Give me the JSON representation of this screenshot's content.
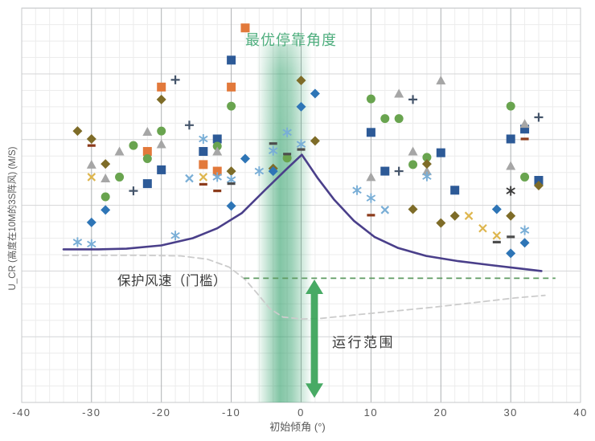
{
  "chart_data": {
    "type": "scatter",
    "title": "最优停靠角度",
    "xlabel": "初始倾角 (°)",
    "ylabel": "U_CR (高度在10M的3S阵风) (M/S)",
    "xlim": [
      -40,
      40
    ],
    "x_ticks": [
      -40,
      -30,
      -20,
      -10,
      0,
      10,
      20,
      30,
      40
    ],
    "ylim": [
      0,
      6
    ],
    "y_axis_note": "no numeric y tick labels shown; y values are in horizontal-gridline units counted from the bottom axis",
    "grid": {
      "major": true,
      "minor": true,
      "minor_x_step_deg": 2,
      "minor_y_step_units": 0.25
    },
    "legend": "none",
    "annotations": {
      "optimal_band": {
        "label": "最优停靠角度",
        "x_from": -6.4,
        "x_to": 1.6,
        "color": "#2e9e68",
        "label_color": "#4fae7e"
      },
      "threshold": {
        "label": "保护风速（门槛）",
        "y": 1.89,
        "x_from": -8.2,
        "x_to": 36.4,
        "color": "#5f9b62",
        "style": "dashed"
      },
      "operating_range": {
        "label": "运行范围",
        "arrow_x": 1.9,
        "y_from": 0.07,
        "y_to": 1.87,
        "color": "#38a358"
      }
    },
    "lines": [
      {
        "name": "critical-gust-curve",
        "color": "#4a3f8a",
        "style": "solid",
        "width": 2.6,
        "points": [
          [
            -34,
            2.33
          ],
          [
            -29,
            2.33
          ],
          [
            -25,
            2.34
          ],
          [
            -20,
            2.39
          ],
          [
            -15.5,
            2.5
          ],
          [
            -12,
            2.65
          ],
          [
            -8.5,
            2.88
          ],
          [
            -5.1,
            3.24
          ],
          [
            -2.2,
            3.54
          ],
          [
            0.1,
            3.77
          ],
          [
            2.4,
            3.41
          ],
          [
            4.7,
            3.09
          ],
          [
            7.6,
            2.76
          ],
          [
            10.5,
            2.52
          ],
          [
            13.9,
            2.35
          ],
          [
            17.9,
            2.23
          ],
          [
            22.5,
            2.15
          ],
          [
            27.1,
            2.09
          ],
          [
            31.1,
            2.04
          ],
          [
            34.4,
            2.0
          ]
        ]
      },
      {
        "name": "secondary-dashed-curve",
        "color": "#cccccc",
        "style": "dashed",
        "width": 1.8,
        "points": [
          [
            -34.1,
            2.24
          ],
          [
            -23.5,
            2.24
          ],
          [
            -17.2,
            2.23
          ],
          [
            -13.4,
            2.18
          ],
          [
            -10.3,
            2.06
          ],
          [
            -8,
            1.87
          ],
          [
            -6.3,
            1.66
          ],
          [
            -4.5,
            1.43
          ],
          [
            -2.6,
            1.3
          ],
          [
            0.1,
            1.27
          ],
          [
            2.9,
            1.28
          ],
          [
            7.5,
            1.33
          ],
          [
            13.3,
            1.39
          ],
          [
            19,
            1.45
          ],
          [
            24.8,
            1.52
          ],
          [
            30.6,
            1.59
          ],
          [
            34.9,
            1.63
          ]
        ]
      }
    ],
    "series": [
      {
        "name": "blue-square",
        "marker": "square",
        "color": "#2d5a97",
        "points": [
          [
            -20,
            3.54
          ],
          [
            -22,
            3.33
          ],
          [
            -12,
            4.01
          ],
          [
            -14,
            3.82
          ],
          [
            -10,
            5.21
          ],
          [
            10,
            4.11
          ],
          [
            12,
            3.52
          ],
          [
            20,
            3.8
          ],
          [
            22,
            3.23
          ],
          [
            30,
            4.01
          ],
          [
            32,
            4.16
          ],
          [
            34,
            3.38
          ]
        ]
      },
      {
        "name": "orange-square",
        "marker": "square",
        "color": "#e2793b",
        "points": [
          [
            -22,
            3.82
          ],
          [
            -14,
            3.62
          ],
          [
            -12,
            3.52
          ],
          [
            -20,
            4.8
          ],
          [
            -10,
            4.8
          ],
          [
            -8,
            5.7
          ]
        ]
      },
      {
        "name": "green-circle",
        "marker": "circle",
        "color": "#69a44f",
        "points": [
          [
            -20,
            4.13
          ],
          [
            -24,
            3.91
          ],
          [
            -22,
            3.71
          ],
          [
            -26,
            3.43
          ],
          [
            -28,
            3.13
          ],
          [
            -10,
            4.51
          ],
          [
            -12,
            3.9
          ],
          [
            -2,
            3.72
          ],
          [
            10,
            4.62
          ],
          [
            12,
            4.32
          ],
          [
            14,
            4.32
          ],
          [
            16,
            3.62
          ],
          [
            18,
            3.73
          ],
          [
            30,
            4.51
          ],
          [
            32,
            3.43
          ]
        ]
      },
      {
        "name": "gray-triangle",
        "marker": "triangle",
        "color": "#a6a6a6",
        "points": [
          [
            -22,
            4.12
          ],
          [
            -20,
            3.93
          ],
          [
            -26,
            3.82
          ],
          [
            -30,
            3.62
          ],
          [
            -28,
            3.41
          ],
          [
            -12,
            3.82
          ],
          [
            10,
            3.43
          ],
          [
            14,
            4.7
          ],
          [
            16,
            3.82
          ],
          [
            18,
            3.52
          ],
          [
            20,
            4.9
          ],
          [
            30,
            3.6
          ],
          [
            32,
            4.24
          ]
        ]
      },
      {
        "name": "olive-diamond",
        "marker": "diamond",
        "color": "#7e6c28",
        "points": [
          [
            -32,
            4.13
          ],
          [
            -30,
            4.01
          ],
          [
            -28,
            3.63
          ],
          [
            -20,
            4.61
          ],
          [
            -10,
            3.52
          ],
          [
            0,
            4.9
          ],
          [
            2,
            3.98
          ],
          [
            -4,
            3.56
          ],
          [
            16,
            2.94
          ],
          [
            18,
            3.63
          ],
          [
            20,
            2.73
          ],
          [
            22,
            2.84
          ],
          [
            30,
            2.84
          ],
          [
            34,
            3.3
          ]
        ]
      },
      {
        "name": "blue-diamond",
        "marker": "diamond",
        "color": "#2e75b6",
        "points": [
          [
            -28,
            2.93
          ],
          [
            -30,
            2.74
          ],
          [
            -8,
            3.71
          ],
          [
            -10,
            2.99
          ],
          [
            2,
            4.7
          ],
          [
            0,
            4.5
          ],
          [
            -4,
            3.52
          ],
          [
            28,
            2.94
          ],
          [
            32,
            2.43
          ],
          [
            30,
            2.27
          ]
        ]
      },
      {
        "name": "lightblue-asterisk",
        "marker": "asterisk",
        "color": "#79aed6",
        "points": [
          [
            -32,
            2.44
          ],
          [
            -30,
            2.41
          ],
          [
            -18,
            2.54
          ],
          [
            -14,
            4.01
          ],
          [
            -12,
            3.43
          ],
          [
            -10,
            3.39
          ],
          [
            -6,
            3.52
          ],
          [
            -2,
            4.11
          ],
          [
            -4,
            3.83
          ],
          [
            0,
            3.93
          ],
          [
            8,
            3.23
          ],
          [
            10,
            3.11
          ],
          [
            18,
            3.44
          ],
          [
            32,
            2.62
          ]
        ]
      },
      {
        "name": "lightblue-x",
        "marker": "x",
        "color": "#79aed6",
        "points": [
          [
            -16,
            3.41
          ],
          [
            12,
            2.93
          ]
        ]
      },
      {
        "name": "gold-x",
        "marker": "x",
        "color": "#deb64e",
        "points": [
          [
            -30,
            3.43
          ],
          [
            -14,
            3.43
          ],
          [
            24,
            2.84
          ],
          [
            26,
            2.65
          ],
          [
            28,
            2.54
          ]
        ]
      },
      {
        "name": "dark-plus",
        "marker": "plus",
        "color": "#44546a",
        "points": [
          [
            -24,
            3.22
          ],
          [
            -18,
            4.91
          ],
          [
            -16,
            4.22
          ],
          [
            14,
            3.52
          ],
          [
            16,
            4.61
          ],
          [
            34,
            4.34
          ]
        ]
      },
      {
        "name": "dark-dash",
        "marker": "dash",
        "color": "#4d4d4d",
        "points": [
          [
            -10,
            3.33
          ],
          [
            -4,
            3.94
          ],
          [
            0,
            3.85
          ],
          [
            -2,
            3.78
          ],
          [
            30,
            2.52
          ],
          [
            28,
            2.44
          ]
        ]
      },
      {
        "name": "red-dash",
        "marker": "dash",
        "color": "#8c3b1b",
        "points": [
          [
            -30,
            3.91
          ],
          [
            -14,
            3.32
          ],
          [
            -12,
            3.22
          ],
          [
            10,
            2.85
          ],
          [
            32,
            4.01
          ]
        ]
      },
      {
        "name": "dark-asterisk",
        "marker": "asterisk",
        "color": "#3b3b3b",
        "points": [
          [
            30,
            3.22
          ]
        ]
      }
    ]
  }
}
